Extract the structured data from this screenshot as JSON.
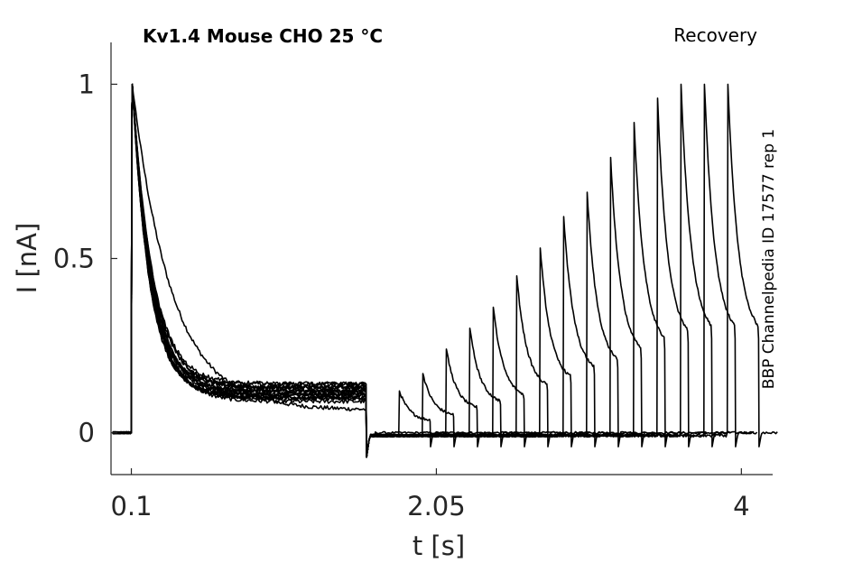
{
  "chart_data": {
    "type": "line",
    "title": "Kv1.4  Mouse  CHO  25 °C",
    "protocol": "Recovery",
    "source": "BBP Channelpedia ID 17577 rep 1",
    "xlabel": "t [s]",
    "ylabel": "I [nA]",
    "xlim": [
      -0.03,
      4.2
    ],
    "ylim": [
      -0.12,
      1.12
    ],
    "xticks": [
      0.1,
      2.05,
      4
    ],
    "xtick_labels": [
      "0.1",
      "2.05",
      "4"
    ],
    "yticks": [
      0,
      0.5,
      1
    ],
    "ytick_labels": [
      "0",
      "0.5",
      "1"
    ],
    "grid": false,
    "color": "#000000",
    "pulse1": {
      "start": 0.1,
      "end": 1.6
    },
    "sweeps": [
      {
        "tau": 0.25,
        "ss1": 0.065,
        "peak2": 0.0,
        "delay": 0.0
      },
      {
        "tau": 0.13,
        "ss1": 0.09,
        "peak2": 0.12,
        "delay": 0.15
      },
      {
        "tau": 0.12,
        "ss1": 0.1,
        "peak2": 0.17,
        "delay": 0.3
      },
      {
        "tau": 0.11,
        "ss1": 0.11,
        "peak2": 0.24,
        "delay": 0.45
      },
      {
        "tau": 0.12,
        "ss1": 0.12,
        "peak2": 0.3,
        "delay": 0.6
      },
      {
        "tau": 0.13,
        "ss1": 0.13,
        "peak2": 0.36,
        "delay": 0.75
      },
      {
        "tau": 0.11,
        "ss1": 0.14,
        "peak2": 0.45,
        "delay": 0.9
      },
      {
        "tau": 0.12,
        "ss1": 0.1,
        "peak2": 0.53,
        "delay": 1.05
      },
      {
        "tau": 0.13,
        "ss1": 0.11,
        "peak2": 0.62,
        "delay": 1.2
      },
      {
        "tau": 0.11,
        "ss1": 0.12,
        "peak2": 0.69,
        "delay": 1.35
      },
      {
        "tau": 0.12,
        "ss1": 0.13,
        "peak2": 0.79,
        "delay": 1.5
      },
      {
        "tau": 0.13,
        "ss1": 0.14,
        "peak2": 0.89,
        "delay": 1.65
      },
      {
        "tau": 0.12,
        "ss1": 0.1,
        "peak2": 0.96,
        "delay": 1.8
      },
      {
        "tau": 0.11,
        "ss1": 0.11,
        "peak2": 1.0,
        "delay": 1.95
      },
      {
        "tau": 0.12,
        "ss1": 0.12,
        "peak2": 1.0,
        "delay": 2.1
      },
      {
        "tau": 0.13,
        "ss1": 0.13,
        "peak2": 1.0,
        "delay": 2.25
      }
    ]
  }
}
